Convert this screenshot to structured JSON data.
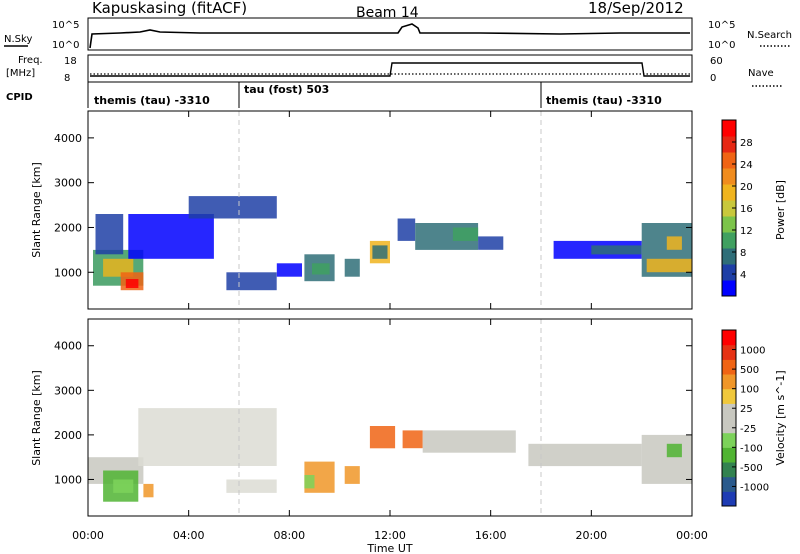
{
  "header": {
    "station": "Kapuskasing (fitACF)",
    "beam": "Beam 14",
    "date": "18/Sep/2012"
  },
  "summary": {
    "nsky_label": "N.Sky",
    "nsky_ticks": [
      "10^5",
      "10^0"
    ],
    "nsearch_label": "N.Search",
    "nsearch_ticks": [
      "10^5",
      "10^0"
    ],
    "freq_label": "Freq.",
    "freq_unit": "[MHz]",
    "freq_ticks": [
      "18",
      "8"
    ],
    "nave_label": "Nave",
    "nave_ticks": [
      "60",
      "0"
    ],
    "cpid_label": "CPID",
    "cpid_segments": [
      {
        "label": "themis (tau) -3310",
        "start": 0,
        "end": 6
      },
      {
        "label": "tau (fost) 503",
        "start": 6,
        "end": 18
      },
      {
        "label": "themis (tau) -3310",
        "start": 18,
        "end": 24
      }
    ]
  },
  "colorbars": {
    "power": {
      "label": "Power [dB]",
      "ticks": [
        "28",
        "24",
        "20",
        "16",
        "12",
        "8",
        "4"
      ],
      "colors": [
        "#0000ff",
        "#1e3fa6",
        "#2f6e78",
        "#40a060",
        "#7cc44a",
        "#c8c83c",
        "#f0b41e",
        "#f08c1e",
        "#f06414",
        "#e62814",
        "#ff0000"
      ]
    },
    "velocity": {
      "label": "Velocity [m s^-1]",
      "ticks": [
        "1000",
        "500",
        "100",
        "25",
        "-25",
        "-100",
        "-500",
        "-1000"
      ],
      "colors": [
        "#1e3cb4",
        "#2a5a8c",
        "#328250",
        "#50b432",
        "#7cd25a",
        "#c8c8c0",
        "#c8c8c0",
        "#f0c83c",
        "#f09628",
        "#f06414",
        "#e63214",
        "#ff0000"
      ]
    }
  },
  "x_axis": {
    "label": "Time UT",
    "ticks": [
      "00:00",
      "04:00",
      "08:00",
      "12:00",
      "16:00",
      "20:00",
      "00:00"
    ]
  },
  "chart_data": [
    {
      "type": "heatmap",
      "name": "power",
      "ylabel": "Slant Range [km]",
      "ylim": [
        180,
        4600
      ],
      "xlim": [
        0,
        24
      ],
      "yticks": [
        1000,
        2000,
        3000,
        4000
      ],
      "grid": false,
      "patches": [
        {
          "t0": 0.2,
          "t1": 2.2,
          "r0": 700,
          "r1": 1500,
          "c": "#3a9a5e"
        },
        {
          "t0": 0.6,
          "t1": 1.8,
          "r0": 900,
          "r1": 1300,
          "c": "#e8b41e"
        },
        {
          "t0": 1.3,
          "t1": 2.2,
          "r0": 600,
          "r1": 1000,
          "c": "#f06414"
        },
        {
          "t0": 1.5,
          "t1": 2.0,
          "r0": 650,
          "r1": 850,
          "c": "#ff0000"
        },
        {
          "t0": 0.3,
          "t1": 1.4,
          "r0": 1400,
          "r1": 2300,
          "c": "#1e3fa6"
        },
        {
          "t0": 1.6,
          "t1": 5.0,
          "r0": 1300,
          "r1": 2300,
          "c": "#0000ff"
        },
        {
          "t0": 4.0,
          "t1": 7.5,
          "r0": 2200,
          "r1": 2700,
          "c": "#1e3fa6"
        },
        {
          "t0": 5.5,
          "t1": 7.5,
          "r0": 600,
          "r1": 1000,
          "c": "#1e3fa6"
        },
        {
          "t0": 7.5,
          "t1": 8.5,
          "r0": 900,
          "r1": 1200,
          "c": "#0000ff"
        },
        {
          "t0": 8.6,
          "t1": 9.8,
          "r0": 800,
          "r1": 1400,
          "c": "#2f6e78"
        },
        {
          "t0": 8.9,
          "t1": 9.6,
          "r0": 950,
          "r1": 1200,
          "c": "#40a060"
        },
        {
          "t0": 10.2,
          "t1": 10.8,
          "r0": 900,
          "r1": 1300,
          "c": "#2f6e78"
        },
        {
          "t0": 11.2,
          "t1": 12.0,
          "r0": 1200,
          "r1": 1700,
          "c": "#f0b41e"
        },
        {
          "t0": 11.3,
          "t1": 11.9,
          "r0": 1300,
          "r1": 1600,
          "c": "#2f6e78"
        },
        {
          "t0": 12.3,
          "t1": 13.0,
          "r0": 1700,
          "r1": 2200,
          "c": "#1e3fa6"
        },
        {
          "t0": 13.0,
          "t1": 15.5,
          "r0": 1500,
          "r1": 2100,
          "c": "#2f6e78"
        },
        {
          "t0": 14.5,
          "t1": 15.5,
          "r0": 1700,
          "r1": 2000,
          "c": "#40a060"
        },
        {
          "t0": 15.5,
          "t1": 16.5,
          "r0": 1500,
          "r1": 1800,
          "c": "#1e3fa6"
        },
        {
          "t0": 18.5,
          "t1": 22.0,
          "r0": 1300,
          "r1": 1700,
          "c": "#0000ff"
        },
        {
          "t0": 20.0,
          "t1": 22.0,
          "r0": 1400,
          "r1": 1600,
          "c": "#2f6e78"
        },
        {
          "t0": 22.0,
          "t1": 24.0,
          "r0": 900,
          "r1": 2100,
          "c": "#2f6e78"
        },
        {
          "t0": 22.2,
          "t1": 24.0,
          "r0": 1000,
          "r1": 1300,
          "c": "#f0b41e"
        },
        {
          "t0": 23.0,
          "t1": 23.6,
          "r0": 1500,
          "r1": 1800,
          "c": "#f0b41e"
        }
      ]
    },
    {
      "type": "heatmap",
      "name": "velocity",
      "ylabel": "Slant Range [km]",
      "ylim": [
        180,
        4600
      ],
      "xlim": [
        0,
        24
      ],
      "yticks": [
        1000,
        2000,
        3000,
        4000
      ],
      "grid": false,
      "patches": [
        {
          "t0": 0.0,
          "t1": 2.2,
          "r0": 900,
          "r1": 1500,
          "c": "#c8c8c0"
        },
        {
          "t0": 0.6,
          "t1": 2.0,
          "r0": 500,
          "r1": 1200,
          "c": "#50b432"
        },
        {
          "t0": 1.0,
          "t1": 1.8,
          "r0": 700,
          "r1": 1000,
          "c": "#7cd25a"
        },
        {
          "t0": 2.2,
          "t1": 2.6,
          "r0": 600,
          "r1": 900,
          "c": "#f09628"
        },
        {
          "t0": 2.0,
          "t1": 7.5,
          "r0": 1300,
          "r1": 2600,
          "c": "#dcdcd4"
        },
        {
          "t0": 5.5,
          "t1": 7.5,
          "r0": 700,
          "r1": 1000,
          "c": "#dcdcd4"
        },
        {
          "t0": 8.6,
          "t1": 9.8,
          "r0": 700,
          "r1": 1400,
          "c": "#f09628"
        },
        {
          "t0": 8.6,
          "t1": 9.0,
          "r0": 800,
          "r1": 1100,
          "c": "#7cd25a"
        },
        {
          "t0": 10.2,
          "t1": 10.8,
          "r0": 900,
          "r1": 1300,
          "c": "#f09628"
        },
        {
          "t0": 11.2,
          "t1": 12.2,
          "r0": 1700,
          "r1": 2200,
          "c": "#f06414"
        },
        {
          "t0": 12.5,
          "t1": 13.3,
          "r0": 1700,
          "r1": 2100,
          "c": "#f06414"
        },
        {
          "t0": 13.3,
          "t1": 17.0,
          "r0": 1600,
          "r1": 2100,
          "c": "#c8c8c0"
        },
        {
          "t0": 17.5,
          "t1": 22.0,
          "r0": 1300,
          "r1": 1800,
          "c": "#c8c8c0"
        },
        {
          "t0": 22.0,
          "t1": 24.0,
          "r0": 900,
          "r1": 2000,
          "c": "#c8c8c0"
        },
        {
          "t0": 23.0,
          "t1": 23.6,
          "r0": 1500,
          "r1": 1800,
          "c": "#50b432"
        }
      ]
    }
  ]
}
